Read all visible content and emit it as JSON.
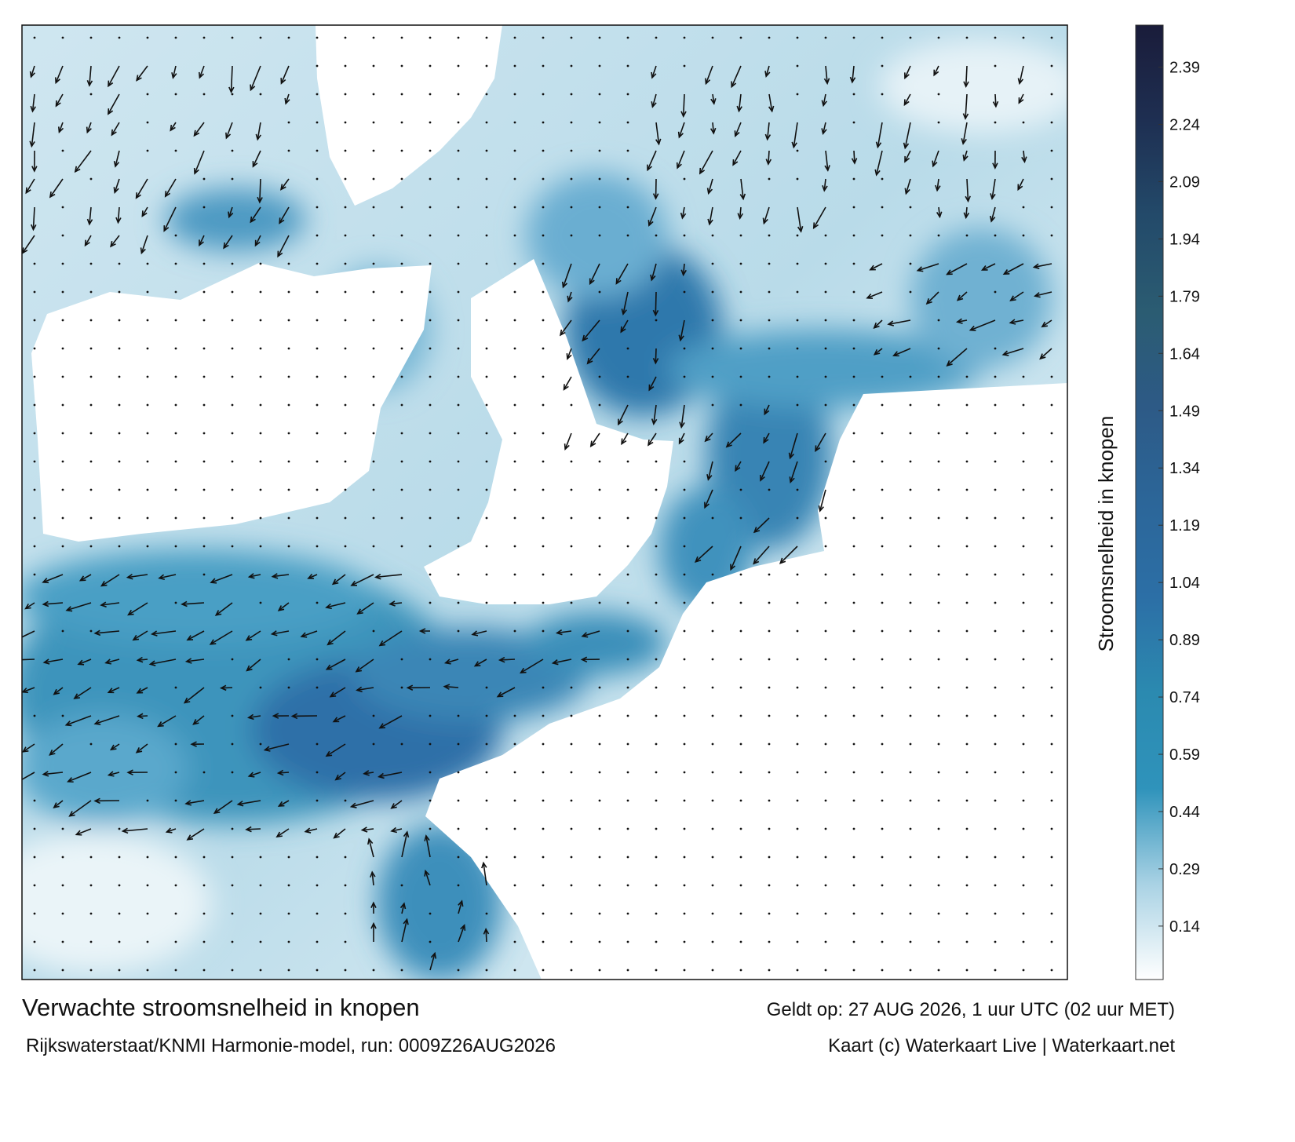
{
  "title": "Verwachte stroomsnelheid in knopen",
  "subtitle": "Rijkswaterstaat/KNMI Harmonie-model, run: 0009Z26AUG2026",
  "valid_time": "Geldt op: 27 AUG 2026, 1 uur UTC (02 uur MET)",
  "credit": "Kaart (c) Waterkaart Live | Waterkaart.net",
  "colorbar": {
    "label": "Stroomsnelheid in knopen",
    "lim": [
      0,
      2.5
    ],
    "ticks": [
      0.14,
      0.29,
      0.44,
      0.59,
      0.74,
      0.89,
      1.04,
      1.19,
      1.34,
      1.49,
      1.64,
      1.79,
      1.94,
      2.09,
      2.24,
      2.39
    ],
    "colors": [
      "#ffffff",
      "#a9d2e4",
      "#2f93bb",
      "#2b8ab0",
      "#2c6fa6",
      "#2c6699",
      "#2d5a86",
      "#2b5c72",
      "#234a6a",
      "#1e2f52",
      "#1a1c3a"
    ]
  }
}
